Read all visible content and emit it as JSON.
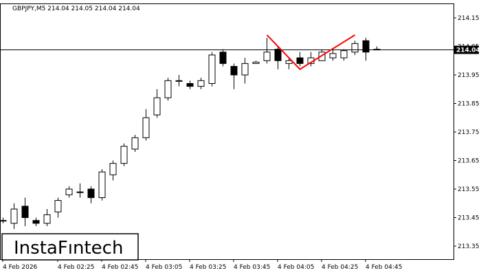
{
  "chart_data": {
    "type": "candlestick",
    "title": "GBPJPY,M5  214.04 214.05 214.04 214.04",
    "symbol": "GBPJPY",
    "timeframe": "M5",
    "current_price_label": "214.04",
    "current_price": 214.04,
    "ylim": [
      213.3,
      214.18
    ],
    "yticks": [
      213.35,
      213.45,
      213.55,
      213.65,
      213.75,
      213.85,
      213.95,
      214.05,
      214.15
    ],
    "ytick_labels": [
      "213.35",
      "213.45",
      "213.55",
      "213.65",
      "213.75",
      "213.85",
      "213.95",
      "214.05",
      "214.15"
    ],
    "xtick_labels": [
      "4 Feb 2026",
      "4 Feb 02:25",
      "4 Feb 02:45",
      "4 Feb 03:05",
      "4 Feb 03:25",
      "4 Feb 03:45",
      "4 Feb 04:05",
      "4 Feb 04:25",
      "4 Feb 04:45"
    ],
    "xtick_index": [
      0,
      5,
      9,
      13,
      17,
      21,
      25,
      29,
      33
    ],
    "candles": [
      {
        "o": 213.44,
        "h": 213.45,
        "l": 213.43,
        "c": 213.44
      },
      {
        "o": 213.43,
        "h": 213.5,
        "l": 213.41,
        "c": 213.48
      },
      {
        "o": 213.49,
        "h": 213.52,
        "l": 213.42,
        "c": 213.45
      },
      {
        "o": 213.44,
        "h": 213.45,
        "l": 213.42,
        "c": 213.43
      },
      {
        "o": 213.43,
        "h": 213.48,
        "l": 213.42,
        "c": 213.46
      },
      {
        "o": 213.47,
        "h": 213.52,
        "l": 213.45,
        "c": 213.51
      },
      {
        "o": 213.53,
        "h": 213.56,
        "l": 213.52,
        "c": 213.55
      },
      {
        "o": 213.54,
        "h": 213.57,
        "l": 213.52,
        "c": 213.54
      },
      {
        "o": 213.55,
        "h": 213.56,
        "l": 213.5,
        "c": 213.52
      },
      {
        "o": 213.52,
        "h": 213.62,
        "l": 213.51,
        "c": 213.61
      },
      {
        "o": 213.6,
        "h": 213.65,
        "l": 213.58,
        "c": 213.64
      },
      {
        "o": 213.64,
        "h": 213.71,
        "l": 213.63,
        "c": 213.7
      },
      {
        "o": 213.69,
        "h": 213.74,
        "l": 213.68,
        "c": 213.73
      },
      {
        "o": 213.73,
        "h": 213.83,
        "l": 213.72,
        "c": 213.8
      },
      {
        "o": 213.81,
        "h": 213.9,
        "l": 213.8,
        "c": 213.87
      },
      {
        "o": 213.87,
        "h": 213.94,
        "l": 213.86,
        "c": 213.93
      },
      {
        "o": 213.93,
        "h": 213.95,
        "l": 213.91,
        "c": 213.93
      },
      {
        "o": 213.92,
        "h": 213.93,
        "l": 213.9,
        "c": 213.91
      },
      {
        "o": 213.91,
        "h": 213.94,
        "l": 213.9,
        "c": 213.93
      },
      {
        "o": 213.92,
        "h": 214.03,
        "l": 213.91,
        "c": 214.02
      },
      {
        "o": 214.03,
        "h": 214.04,
        "l": 213.98,
        "c": 213.99
      },
      {
        "o": 213.98,
        "h": 213.99,
        "l": 213.9,
        "c": 213.95
      },
      {
        "o": 213.95,
        "h": 214.01,
        "l": 213.92,
        "c": 213.99
      },
      {
        "o": 213.99,
        "h": 214.0,
        "l": 213.99,
        "c": 213.995
      },
      {
        "o": 214.0,
        "h": 214.08,
        "l": 213.99,
        "c": 214.03
      },
      {
        "o": 214.04,
        "h": 214.05,
        "l": 213.97,
        "c": 214.0
      },
      {
        "o": 213.99,
        "h": 214.01,
        "l": 213.97,
        "c": 214.0
      },
      {
        "o": 214.01,
        "h": 214.03,
        "l": 213.98,
        "c": 213.99
      },
      {
        "o": 213.99,
        "h": 214.03,
        "l": 213.98,
        "c": 214.01
      },
      {
        "o": 214.0,
        "h": 214.04,
        "l": 214.0,
        "c": 214.03
      },
      {
        "o": 214.01,
        "h": 214.04,
        "l": 214.0,
        "c": 214.025
      },
      {
        "o": 214.01,
        "h": 214.04,
        "l": 214.0,
        "c": 214.035
      },
      {
        "o": 214.03,
        "h": 214.07,
        "l": 214.02,
        "c": 214.06
      },
      {
        "o": 214.07,
        "h": 214.08,
        "l": 214.0,
        "c": 214.03
      },
      {
        "o": 214.04,
        "h": 214.05,
        "l": 214.04,
        "c": 214.04
      }
    ],
    "pattern": {
      "type": "double-top",
      "color": "#ff0000",
      "points": [
        {
          "i": 24,
          "price": 214.09
        },
        {
          "i": 27,
          "price": 213.97
        },
        {
          "i": 32,
          "price": 214.09
        }
      ]
    },
    "grid": false,
    "colors": {
      "bull_fill": "#ffffff",
      "bear_fill": "#000000",
      "candle_line": "#000000",
      "price_line": "#000000",
      "price_tag_bg": "#000000",
      "price_tag_text": "#ffffff",
      "pattern": "#ff0000"
    }
  },
  "logo": {
    "text": "InstaFıntech"
  }
}
